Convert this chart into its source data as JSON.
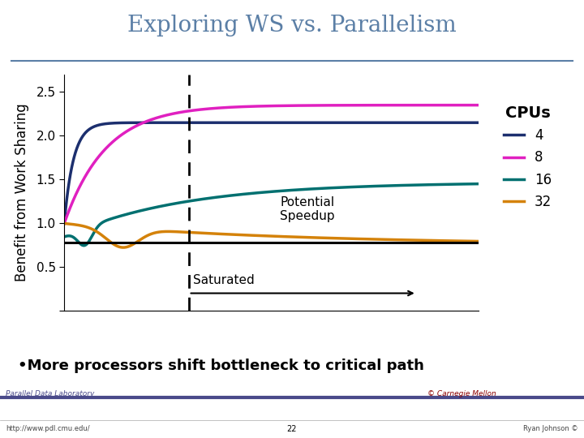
{
  "title": "Exploring WS vs. Parallelism",
  "ylabel": "Benefit from Work Sharing",
  "background_color": "#ffffff",
  "title_color": "#5b7fa6",
  "title_fontsize": 20,
  "ylabel_fontsize": 12,
  "ylim": [
    0,
    2.7
  ],
  "xlim": [
    0,
    100
  ],
  "yticks": [
    0,
    0.5,
    1.0,
    1.5,
    2.0,
    2.5
  ],
  "dashed_x": 30,
  "hline_y": 0.78,
  "colors": {
    "4": "#1c2f6e",
    "8": "#e020c0",
    "16": "#007070",
    "32": "#d4820a"
  },
  "legend_title": "CPUs",
  "bottom_text": "•More processors shift bottleneck to critical path",
  "bottom_bg": "#ffff88",
  "footer_left": "Parallel Data Laboratory",
  "footer_center": "22",
  "footer_right": "Ryan Johnson ©",
  "footer_color": "#4a4a8a",
  "title_rule_color": "#5b7fa6",
  "footer_rule_color": "#4a4a8a"
}
